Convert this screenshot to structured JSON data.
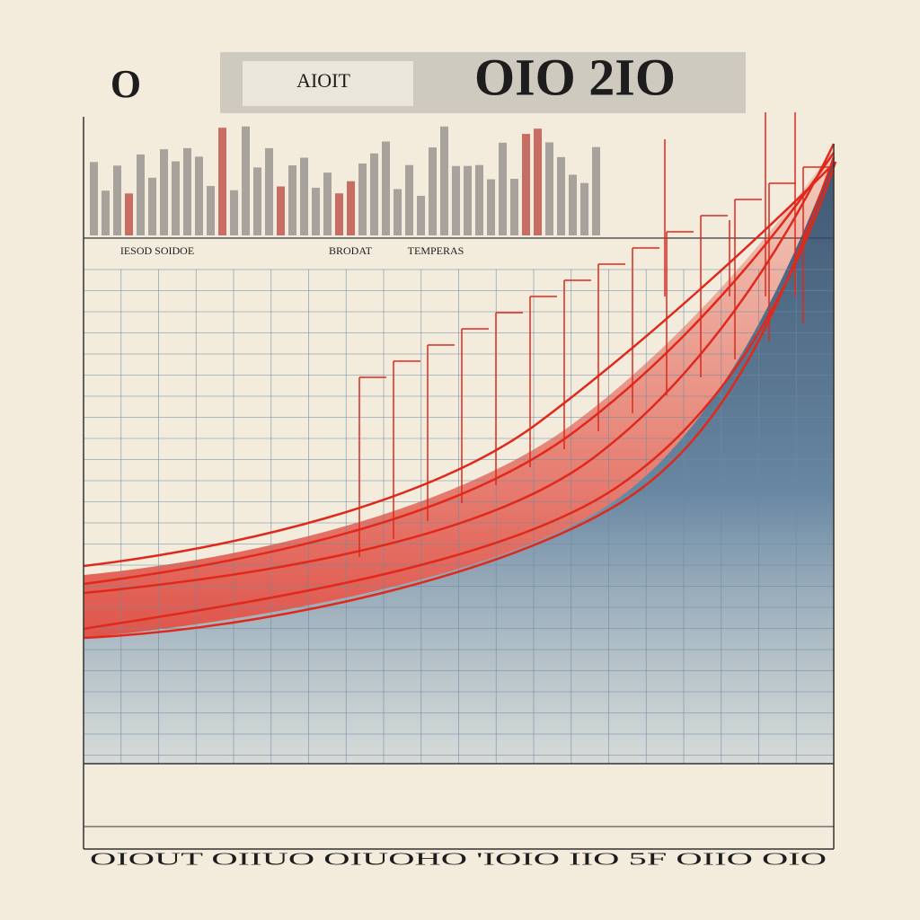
{
  "header": {
    "mark": "O",
    "title": "OIO 2IO",
    "caption": "AIOIT"
  },
  "bands": [
    "IESOD SOIDOE",
    "BRODAT",
    "TEMPERAS"
  ],
  "footer": "OIOUT OIIUO OIUOHO 'IOIO IIO 5F OIIO OIO"
}
